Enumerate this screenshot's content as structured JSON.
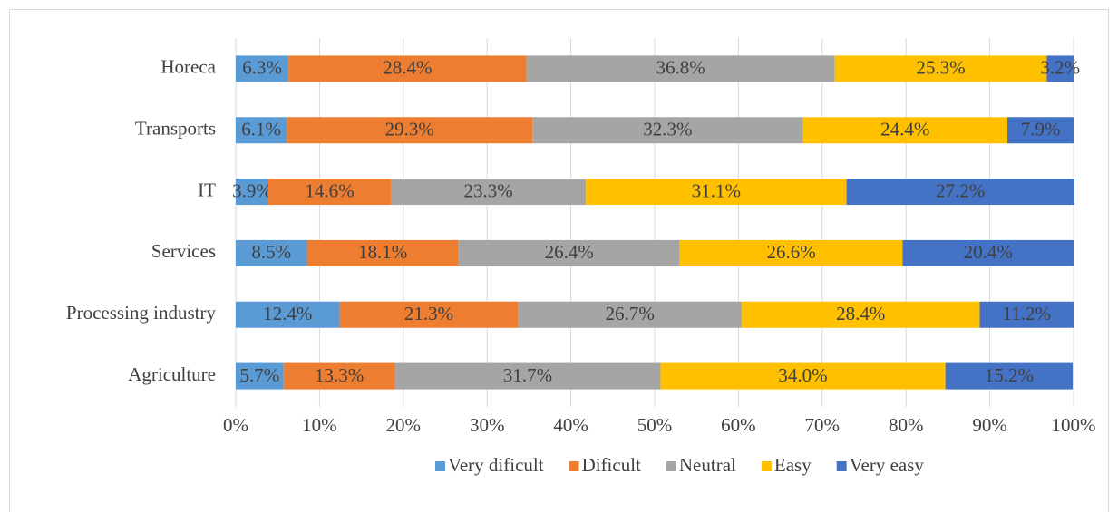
{
  "chart_data": {
    "type": "stacked-bar-horizontal",
    "categories": [
      "Horeca",
      "Transports",
      "IT",
      "Services",
      "Processing industry",
      "Agriculture"
    ],
    "series": [
      {
        "name": "Very dificult",
        "color": "#5b9bd5",
        "values": [
          6.3,
          6.1,
          3.9,
          8.5,
          12.4,
          5.7
        ],
        "value_labels": [
          "6.3%",
          "6.1%",
          "3.9%",
          "8.5%",
          "12.4%",
          "5.7%"
        ]
      },
      {
        "name": "Dificult",
        "color": "#ed7d31",
        "values": [
          28.4,
          29.3,
          14.6,
          18.1,
          21.3,
          13.3
        ],
        "value_labels": [
          "28.4%",
          "29.3%",
          "14.6%",
          "18.1%",
          "21.3%",
          "13.3%"
        ]
      },
      {
        "name": "Neutral",
        "color": "#a5a5a5",
        "values": [
          36.8,
          32.3,
          23.3,
          26.4,
          26.7,
          31.7
        ],
        "value_labels": [
          "36.8%",
          "32.3%",
          "23.3%",
          "26.4%",
          "26.7%",
          "31.7%"
        ]
      },
      {
        "name": "Easy",
        "color": "#ffc000",
        "values": [
          25.3,
          24.4,
          31.1,
          26.6,
          28.4,
          34.0
        ],
        "value_labels": [
          "25.3%",
          "24.4%",
          "31.1%",
          "26.6%",
          "28.4%",
          "34.0%"
        ]
      },
      {
        "name": "Very easy",
        "color": "#4472c4",
        "values": [
          3.2,
          7.9,
          27.2,
          20.4,
          11.2,
          15.2
        ],
        "value_labels": [
          "3.2%",
          "7.9%",
          "27.2%",
          "20.4%",
          "11.2%",
          "15.2%"
        ]
      }
    ],
    "xlim": [
      0,
      100
    ],
    "xticks": [
      {
        "value": 0,
        "label": "0%"
      },
      {
        "value": 10,
        "label": "10%"
      },
      {
        "value": 20,
        "label": "20%"
      },
      {
        "value": 30,
        "label": "30%"
      },
      {
        "value": 40,
        "label": "40%"
      },
      {
        "value": 50,
        "label": "50%"
      },
      {
        "value": 60,
        "label": "60%"
      },
      {
        "value": 70,
        "label": "70%"
      },
      {
        "value": 80,
        "label": "80%"
      },
      {
        "value": 90,
        "label": "90%"
      },
      {
        "value": 100,
        "label": "100%"
      }
    ],
    "grid": true,
    "legend": "bottom"
  }
}
